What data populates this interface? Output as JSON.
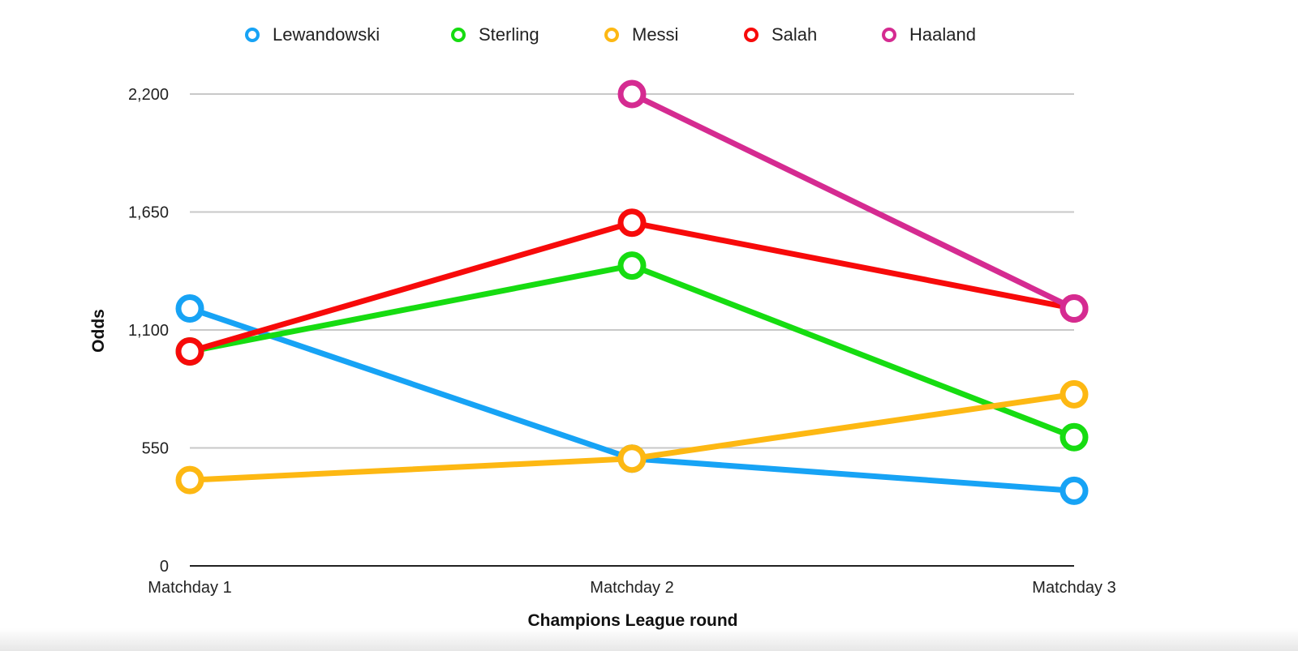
{
  "chart_data": {
    "type": "line",
    "categories": [
      "Matchday 1",
      "Matchday 2",
      "Matchday 3"
    ],
    "series": [
      {
        "name": "Lewandowski",
        "color": "#17a3f5",
        "values": [
          1200,
          500,
          350
        ]
      },
      {
        "name": "Sterling",
        "color": "#16dc11",
        "values": [
          1000,
          1400,
          600
        ]
      },
      {
        "name": "Messi",
        "color": "#fdb813",
        "values": [
          400,
          500,
          800
        ]
      },
      {
        "name": "Salah",
        "color": "#f70a0a",
        "values": [
          1000,
          1600,
          1200
        ]
      },
      {
        "name": "Haaland",
        "color": "#d52b91",
        "values": [
          null,
          2200,
          1200
        ]
      }
    ],
    "xlabel": "Champions League round",
    "ylabel": "Odds",
    "yticks": [
      0,
      550,
      1100,
      1650,
      2200
    ],
    "ytick_labels": [
      "0",
      "550",
      "1,100",
      "1,650",
      "2,200"
    ],
    "ylim": [
      0,
      2200
    ],
    "grid": true,
    "legend_position": "top"
  }
}
